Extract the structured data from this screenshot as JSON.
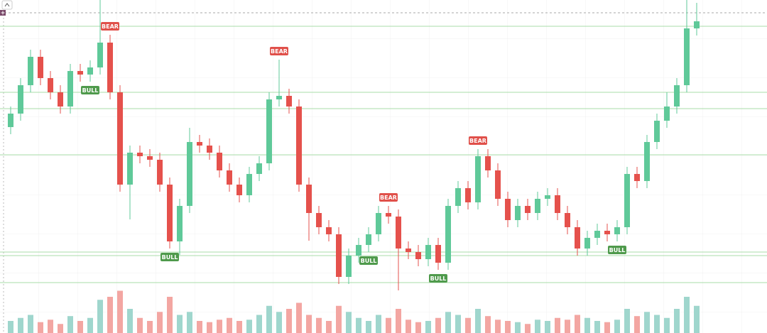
{
  "chart_data": {
    "type": "candlestick",
    "open": [
      290,
      309,
      349,
      389,
      359,
      339,
      319,
      369,
      364,
      374,
      409,
      339,
      209,
      254,
      249,
      244,
      209,
      129,
      179,
      269,
      264,
      254,
      229,
      209,
      194,
      224,
      239,
      329,
      334,
      319,
      209,
      169,
      149,
      139,
      79,
      109,
      124,
      139,
      169,
      164,
      119,
      114,
      104,
      124,
      99,
      179,
      204,
      184,
      249,
      229,
      189,
      159,
      179,
      169,
      189,
      194,
      169,
      149,
      119,
      134,
      144,
      139,
      149,
      224,
      214,
      269,
      299,
      319,
      349,
      429
    ],
    "high": [
      319,
      359,
      399,
      399,
      369,
      349,
      379,
      379,
      384,
      469,
      420,
      349,
      264,
      264,
      259,
      254,
      219,
      189,
      289,
      279,
      274,
      264,
      239,
      219,
      234,
      249,
      339,
      385,
      344,
      329,
      219,
      179,
      159,
      149,
      119,
      134,
      149,
      179,
      179,
      174,
      129,
      124,
      134,
      134,
      189,
      214,
      214,
      259,
      259,
      239,
      199,
      189,
      189,
      199,
      204,
      204,
      179,
      159,
      144,
      154,
      154,
      159,
      234,
      234,
      279,
      309,
      339,
      359,
      469,
      465
    ],
    "low": [
      280,
      299,
      339,
      349,
      329,
      309,
      309,
      354,
      354,
      364,
      329,
      199,
      160,
      239,
      234,
      199,
      119,
      110,
      169,
      254,
      244,
      219,
      199,
      184,
      184,
      214,
      229,
      319,
      309,
      199,
      130,
      139,
      129,
      69,
      69,
      99,
      114,
      129,
      154,
      60,
      104,
      94,
      94,
      89,
      89,
      169,
      174,
      174,
      219,
      179,
      149,
      149,
      159,
      159,
      179,
      159,
      139,
      109,
      109,
      124,
      129,
      129,
      139,
      204,
      204,
      259,
      289,
      309,
      339,
      419
    ],
    "close": [
      309,
      349,
      389,
      359,
      339,
      319,
      369,
      364,
      374,
      409,
      339,
      209,
      254,
      249,
      244,
      209,
      129,
      179,
      269,
      264,
      254,
      229,
      209,
      194,
      224,
      239,
      329,
      334,
      319,
      209,
      169,
      149,
      139,
      79,
      109,
      124,
      139,
      169,
      164,
      119,
      114,
      104,
      124,
      99,
      179,
      204,
      184,
      249,
      229,
      189,
      159,
      179,
      169,
      189,
      194,
      169,
      149,
      119,
      134,
      144,
      139,
      149,
      224,
      214,
      269,
      299,
      319,
      349,
      429,
      439
    ],
    "volume": [
      20,
      25,
      30,
      18,
      22,
      15,
      28,
      20,
      25,
      55,
      60,
      70,
      40,
      25,
      20,
      35,
      60,
      30,
      35,
      20,
      18,
      22,
      25,
      20,
      22,
      30,
      45,
      35,
      40,
      50,
      30,
      25,
      20,
      45,
      35,
      25,
      20,
      30,
      25,
      40,
      22,
      18,
      20,
      25,
      35,
      30,
      25,
      40,
      28,
      22,
      20,
      18,
      15,
      22,
      20,
      25,
      22,
      30,
      25,
      20,
      18,
      22,
      40,
      28,
      35,
      30,
      25,
      40,
      60,
      45
    ],
    "signals": [
      null,
      null,
      null,
      null,
      null,
      null,
      null,
      null,
      "BULL",
      null,
      "BEAR",
      null,
      null,
      null,
      null,
      null,
      "BULL",
      null,
      null,
      null,
      null,
      null,
      null,
      null,
      null,
      null,
      null,
      "BEAR",
      null,
      null,
      null,
      null,
      null,
      null,
      null,
      null,
      "BULL",
      null,
      "BEAR",
      null,
      null,
      null,
      null,
      "BULL",
      null,
      null,
      null,
      "BEAR",
      null,
      null,
      null,
      null,
      null,
      null,
      null,
      null,
      null,
      null,
      null,
      null,
      null,
      "BULL",
      null,
      null,
      null,
      null,
      null,
      null,
      null,
      null
    ],
    "levels": [
      432,
      339,
      316,
      251,
      114,
      109,
      71
    ],
    "dashed_level": 451,
    "ylim": [
      0,
      469
    ],
    "volume_ylim": [
      0,
      100
    ],
    "up_color": "#5fc999",
    "down_color": "#e5514c",
    "up_volume_color": "#9fd6cd",
    "down_volume_color": "#f3a6a2",
    "level_color": "#a8dca8"
  }
}
